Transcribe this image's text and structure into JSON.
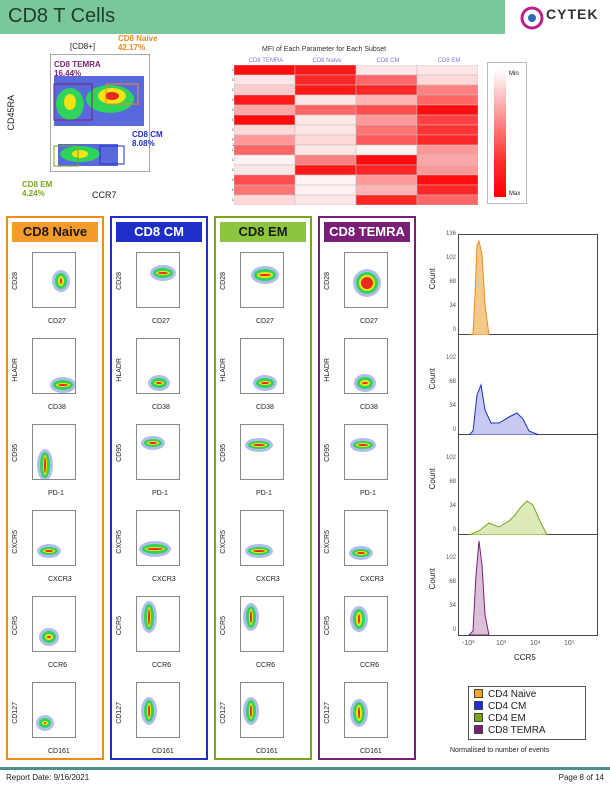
{
  "header": {
    "title": "CD8 T Cells"
  },
  "logo": {
    "text": "CYTEK",
    "tagline": "",
    "accent": "#b8228a"
  },
  "parent_plot": {
    "parent_label": "[CD8+]",
    "y_axis": "CD45RA",
    "x_axis": "CCR7",
    "gates": {
      "temra": {
        "name": "CD8 TEMRA",
        "pct": "16.44%",
        "color": "#7a1f78"
      },
      "naive": {
        "name": "CD8 Naive",
        "pct": "42.17%",
        "color": "#f08a1c"
      },
      "cm": {
        "name": "CD8 CM",
        "pct": "8.08%",
        "color": "#1f2ec9"
      },
      "em": {
        "name": "CD8 EM",
        "pct": "4.24%",
        "color": "#7aa61c"
      }
    }
  },
  "heatmap": {
    "title": "MFI of Each Parameter for Each Subset",
    "columns": [
      "CD8 TEMRA",
      "CD8 Naive",
      "CD8 CM",
      "CD8 EM"
    ],
    "rows": [
      "CD45RA",
      "CCR7",
      "CD27",
      "CD161",
      "CD28",
      "CD95",
      "CXCR3",
      "PD-1",
      "CD38",
      "CXCR5",
      "CD127",
      "CCR5",
      "HLADR",
      "CCR6"
    ],
    "values": [
      [
        0.95,
        0.9,
        0.1,
        0.1
      ],
      [
        0.1,
        0.85,
        0.6,
        0.15
      ],
      [
        0.2,
        0.9,
        0.85,
        0.5
      ],
      [
        0.9,
        0.1,
        0.3,
        0.6
      ],
      [
        0.35,
        0.6,
        0.7,
        0.95
      ],
      [
        0.95,
        0.1,
        0.4,
        0.75
      ],
      [
        0.15,
        0.1,
        0.55,
        0.8
      ],
      [
        0.4,
        0.15,
        0.65,
        0.85
      ],
      [
        0.6,
        0.1,
        0.05,
        0.4
      ],
      [
        0.05,
        0.5,
        0.95,
        0.35
      ],
      [
        0.1,
        0.9,
        0.85,
        0.4
      ],
      [
        0.7,
        0.05,
        0.4,
        0.95
      ],
      [
        0.55,
        0.05,
        0.3,
        0.85
      ],
      [
        0.15,
        0.1,
        0.85,
        0.6
      ]
    ],
    "scale_min": "Min",
    "scale_max": "Max"
  },
  "panels": [
    {
      "name": "CD8 Naive",
      "color": "#f08a1c",
      "bg": "#f59b2b"
    },
    {
      "name": "CD8 CM",
      "color": "#1f2ec9",
      "bg": "#1f2ec9"
    },
    {
      "name": "CD8 EM",
      "color": "#7aa61c",
      "bg": "#8cc63f"
    },
    {
      "name": "CD8 TEMRA",
      "color": "#7a1f78",
      "bg": "#7a1f78"
    }
  ],
  "plots": [
    {
      "y": "CD28",
      "x": "CD27"
    },
    {
      "y": "HLADR",
      "x": "CD38"
    },
    {
      "y": "CD95",
      "x": "PD-1"
    },
    {
      "y": "CXCR5",
      "x": "CXCR3"
    },
    {
      "y": "CCR5",
      "x": "CCR6"
    },
    {
      "y": "CD127",
      "x": "CD161"
    }
  ],
  "histogram": {
    "y_label": "Count",
    "x_label": "CCR5",
    "y_ticks": [
      "136",
      "102",
      "68",
      "34",
      "0"
    ],
    "y_ticks_lower": [
      "102",
      "68",
      "34",
      "0"
    ],
    "x_ticks": [
      "-10³",
      "10³",
      "10⁴",
      "10⁵"
    ],
    "series_colors": [
      "#f08a1c",
      "#1f2ec9",
      "#7aa61c",
      "#7a1f78"
    ],
    "legend": [
      {
        "label": "CD4 Naive",
        "color": "#f5a623"
      },
      {
        "label": "CD4 CM",
        "color": "#1f2ec9"
      },
      {
        "label": "CD4 EM",
        "color": "#7aa61c"
      },
      {
        "label": "CD8 TEMRA",
        "color": "#7a1f78"
      }
    ],
    "note": "Normalised to number of events"
  },
  "footer": {
    "date": "Report Date: 9/16/2021",
    "page": "Page 8 of 14"
  }
}
